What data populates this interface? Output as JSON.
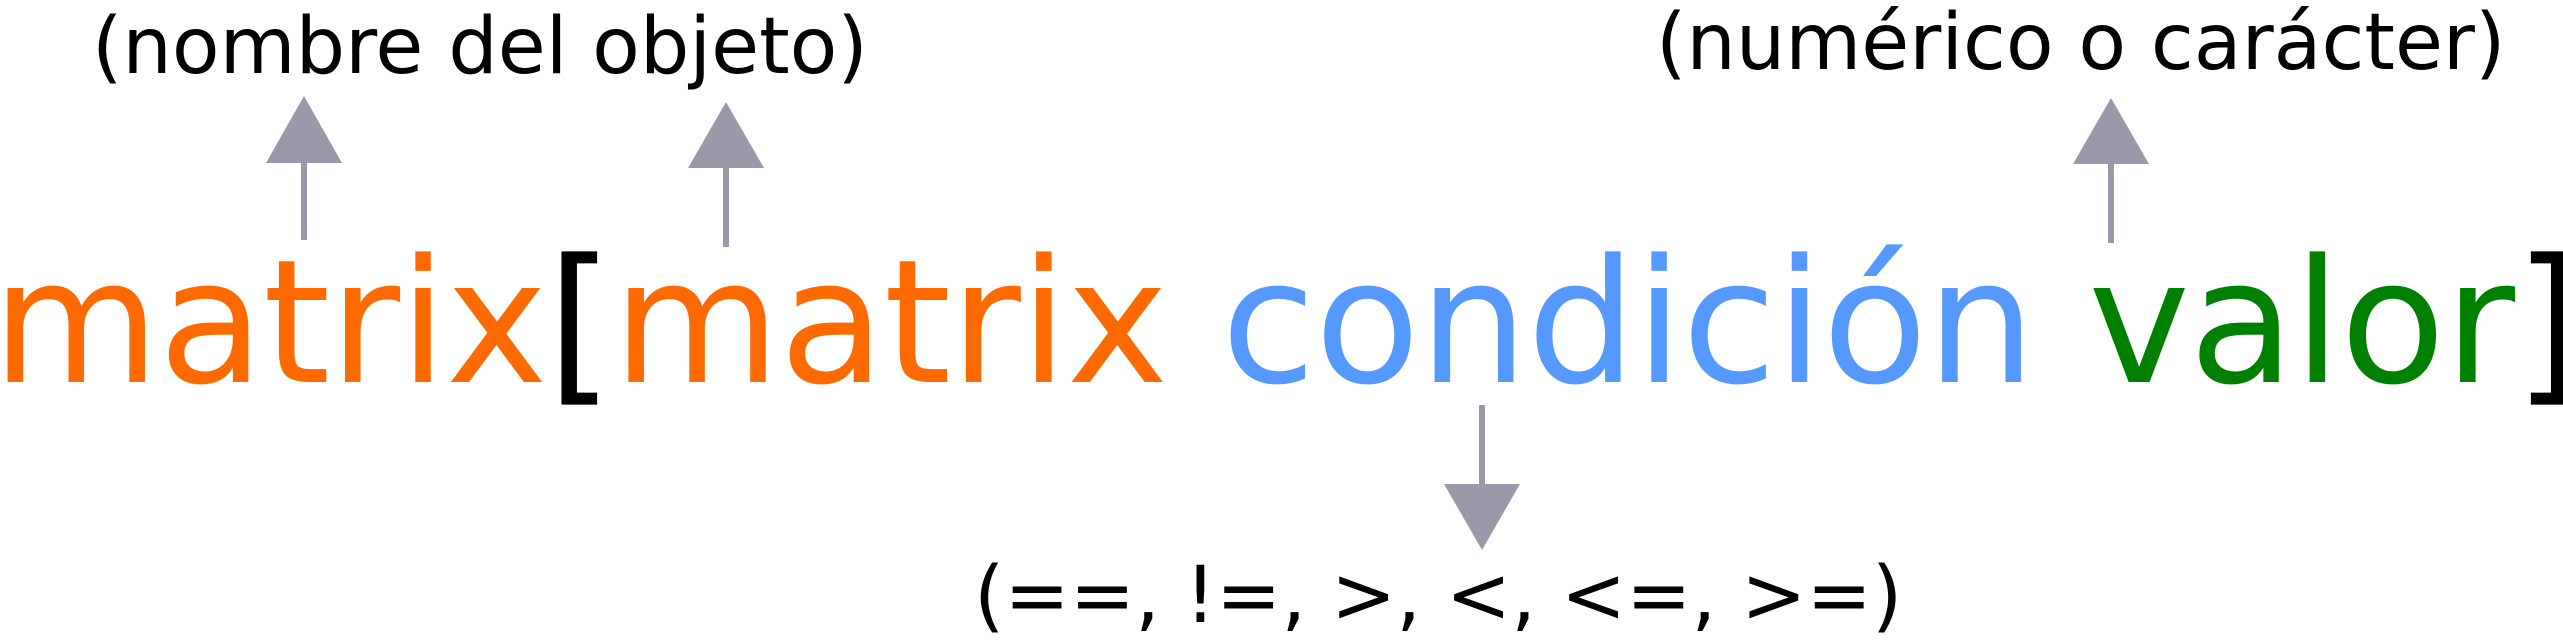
{
  "annotations": {
    "object_name": "(nombre del objeto)",
    "value_type": "(numérico o carácter)",
    "operators": "(==, !=, >, <, <=, >=)"
  },
  "expression": {
    "object": "matrix",
    "open_bracket": "[",
    "inner_object": "matrix",
    "condition": "condición",
    "value": "valor",
    "close_bracket": "]"
  },
  "colors": {
    "object": "#ff6a00",
    "condition": "#5599ff",
    "value": "#008000",
    "bracket": "#000000",
    "arrow": "#9999aa"
  }
}
